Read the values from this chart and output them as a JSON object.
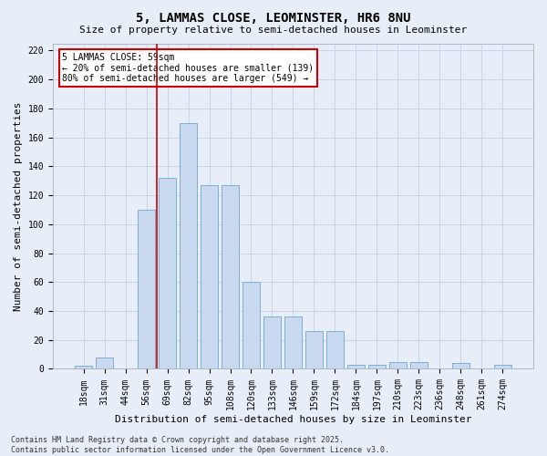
{
  "title": "5, LAMMAS CLOSE, LEOMINSTER, HR6 8NU",
  "subtitle": "Size of property relative to semi-detached houses in Leominster",
  "xlabel": "Distribution of semi-detached houses by size in Leominster",
  "ylabel": "Number of semi-detached properties",
  "categories": [
    "18sqm",
    "31sqm",
    "44sqm",
    "56sqm",
    "69sqm",
    "82sqm",
    "95sqm",
    "108sqm",
    "120sqm",
    "133sqm",
    "146sqm",
    "159sqm",
    "172sqm",
    "184sqm",
    "197sqm",
    "210sqm",
    "223sqm",
    "236sqm",
    "248sqm",
    "261sqm",
    "274sqm"
  ],
  "values": [
    2,
    8,
    0,
    110,
    132,
    170,
    127,
    127,
    60,
    36,
    36,
    26,
    26,
    3,
    3,
    5,
    5,
    0,
    4,
    0,
    3
  ],
  "bar_color": "#c9d9f0",
  "bar_edge_color": "#7bafd4",
  "grid_color": "#c8d4e8",
  "background_color": "#e8eef8",
  "vline_color": "#cc0000",
  "vline_pos": 3.5,
  "annotation_text": "5 LAMMAS CLOSE: 59sqm\n← 20% of semi-detached houses are smaller (139)\n80% of semi-detached houses are larger (549) →",
  "annotation_box_color": "#ffffff",
  "annotation_box_edge": "#cc0000",
  "footer": "Contains HM Land Registry data © Crown copyright and database right 2025.\nContains public sector information licensed under the Open Government Licence v3.0.",
  "ylim": [
    0,
    225
  ],
  "yticks": [
    0,
    20,
    40,
    60,
    80,
    100,
    120,
    140,
    160,
    180,
    200,
    220
  ],
  "title_fontsize": 10,
  "subtitle_fontsize": 8,
  "axis_label_fontsize": 8,
  "tick_fontsize": 7,
  "annotation_fontsize": 7,
  "footer_fontsize": 6
}
